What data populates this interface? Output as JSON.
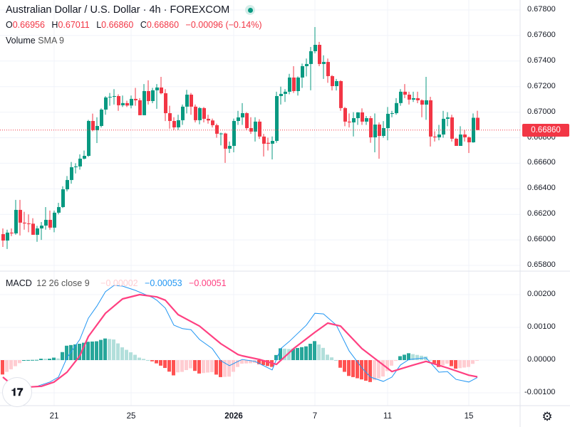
{
  "header": {
    "title": "Australian Dollar / U.S. Dollar · 4h · FOREXCOM",
    "market_status_color": "#089981",
    "ohlc": {
      "o_label": "O",
      "o": "0.66956",
      "h_label": "H",
      "h": "0.67011",
      "l_label": "L",
      "l": "0.66860",
      "c_label": "C",
      "c": "0.66860",
      "change": "−0.00096 (−0.14%)"
    },
    "volume_label": "Volume",
    "volume_sub": "SMA 9"
  },
  "macd_legend": {
    "label": "MACD",
    "params": "12 26 close 9",
    "histogram": "−0.00002",
    "macd": "−0.00053",
    "signal": "−0.00051"
  },
  "colors": {
    "up": "#089981",
    "down": "#f23645",
    "hist_up_strong": "#26a69a",
    "hist_up_weak": "#b2dfdb",
    "hist_down_strong": "#ff5252",
    "hist_down_weak": "#ffcdd2",
    "macd_line": "#2196f3",
    "signal_line": "#ff4081"
  },
  "price_axis": [
    "0.67800",
    "0.67600",
    "0.67400",
    "0.67200",
    "0.67000",
    "0.66800",
    "0.66600",
    "0.66400",
    "0.66200",
    "0.66000",
    "0.65800"
  ],
  "current_price": "0.66860",
  "macd_axis": [
    "0.00200",
    "0.00100",
    "0.00000",
    "-0.00100"
  ],
  "time_axis": [
    {
      "label": "21",
      "bar": 12,
      "bold": false
    },
    {
      "label": "25",
      "bar": 30,
      "bold": false
    },
    {
      "label": "2026",
      "bar": 54,
      "bold": true
    },
    {
      "label": "7",
      "bar": 73,
      "bold": false
    },
    {
      "label": "11",
      "bar": 90,
      "bold": false
    },
    {
      "label": "15",
      "bar": 109,
      "bold": false
    }
  ],
  "logo_text": "TV",
  "chart_data": [
    {
      "type": "candlestick",
      "ylim": [
        0.658,
        0.678
      ],
      "current_price": 0.6686,
      "candles": [
        [
          0.66045,
          0.6609,
          0.65945,
          0.65995
        ],
        [
          0.65995,
          0.6608,
          0.65929,
          0.66057
        ],
        [
          0.66057,
          0.6609,
          0.6603,
          0.66051
        ],
        [
          0.66051,
          0.66313,
          0.6604,
          0.66235
        ],
        [
          0.66235,
          0.66313,
          0.66035,
          0.66135
        ],
        [
          0.66135,
          0.6622,
          0.6608,
          0.66129
        ],
        [
          0.66129,
          0.662,
          0.6606,
          0.66127
        ],
        [
          0.66127,
          0.6617,
          0.6604,
          0.6604
        ],
        [
          0.6604,
          0.6611,
          0.65985,
          0.6609
        ],
        [
          0.6609,
          0.6614,
          0.66,
          0.66112
        ],
        [
          0.66112,
          0.66257,
          0.6608,
          0.66157
        ],
        [
          0.66157,
          0.6623,
          0.6608,
          0.66096
        ],
        [
          0.66096,
          0.6623,
          0.6606,
          0.66213
        ],
        [
          0.66213,
          0.6629,
          0.662,
          0.66257
        ],
        [
          0.66257,
          0.6642,
          0.6625,
          0.66396
        ],
        [
          0.66396,
          0.665,
          0.6638,
          0.66469
        ],
        [
          0.66469,
          0.6661,
          0.6644,
          0.66569
        ],
        [
          0.66569,
          0.666,
          0.6652,
          0.66575
        ],
        [
          0.66575,
          0.6667,
          0.6655,
          0.66636
        ],
        [
          0.66636,
          0.667,
          0.6663,
          0.66658
        ],
        [
          0.66658,
          0.6694,
          0.6665,
          0.66931
        ],
        [
          0.66931,
          0.66989,
          0.6685,
          0.66859
        ],
        [
          0.66859,
          0.6696,
          0.66758,
          0.66892
        ],
        [
          0.66892,
          0.6703,
          0.6688,
          0.6702
        ],
        [
          0.6702,
          0.67125,
          0.6698,
          0.67115
        ],
        [
          0.67115,
          0.6715,
          0.6705,
          0.6712
        ],
        [
          0.6712,
          0.6718,
          0.6706,
          0.67126
        ],
        [
          0.67126,
          0.6714,
          0.6701,
          0.67054
        ],
        [
          0.67054,
          0.6713,
          0.6704,
          0.67071
        ],
        [
          0.67071,
          0.6709,
          0.6704,
          0.67052
        ],
        [
          0.67052,
          0.6713,
          0.6703,
          0.67104
        ],
        [
          0.67104,
          0.6719,
          0.6705,
          0.67093
        ],
        [
          0.67093,
          0.6711,
          0.66976,
          0.66976
        ],
        [
          0.66976,
          0.6722,
          0.66976,
          0.67165
        ],
        [
          0.67165,
          0.67249,
          0.6706,
          0.67087
        ],
        [
          0.67087,
          0.6719,
          0.6707,
          0.67171
        ],
        [
          0.67171,
          0.6722,
          0.67026,
          0.67193
        ],
        [
          0.67193,
          0.67276,
          0.6714,
          0.67148
        ],
        [
          0.67148,
          0.6718,
          0.6693,
          0.66992
        ],
        [
          0.66992,
          0.6705,
          0.6687,
          0.66931
        ],
        [
          0.66931,
          0.6696,
          0.6686,
          0.66881
        ],
        [
          0.66881,
          0.6698,
          0.6686,
          0.66937
        ],
        [
          0.66937,
          0.6706,
          0.669,
          0.67043
        ],
        [
          0.67043,
          0.67175,
          0.6699,
          0.67137
        ],
        [
          0.67137,
          0.6715,
          0.6698,
          0.67043
        ],
        [
          0.67043,
          0.6706,
          0.6692,
          0.66937
        ],
        [
          0.66937,
          0.6704,
          0.66905,
          0.67032
        ],
        [
          0.67032,
          0.6704,
          0.6692,
          0.66948
        ],
        [
          0.66948,
          0.6698,
          0.6691,
          0.66935
        ],
        [
          0.66935,
          0.6695,
          0.6688,
          0.66898
        ],
        [
          0.66898,
          0.6691,
          0.668,
          0.66831
        ],
        [
          0.66831,
          0.6684,
          0.6674,
          0.66833
        ],
        [
          0.66833,
          0.6684,
          0.66603,
          0.66714
        ],
        [
          0.66714,
          0.6677,
          0.6668,
          0.66736
        ],
        [
          0.66736,
          0.6695,
          0.66686,
          0.66931
        ],
        [
          0.66931,
          0.6701,
          0.669,
          0.66959
        ],
        [
          0.66959,
          0.67071,
          0.669,
          0.66992
        ],
        [
          0.66992,
          0.67,
          0.6686,
          0.66875
        ],
        [
          0.66875,
          0.6696,
          0.6683,
          0.66848
        ],
        [
          0.66848,
          0.6696,
          0.6677,
          0.66926
        ],
        [
          0.66926,
          0.66945,
          0.6679,
          0.66809
        ],
        [
          0.66809,
          0.6683,
          0.66653,
          0.66753
        ],
        [
          0.6676,
          0.668,
          0.667,
          0.66753
        ],
        [
          0.66753,
          0.6681,
          0.6663,
          0.66775
        ],
        [
          0.66775,
          0.6716,
          0.6676,
          0.67126
        ],
        [
          0.67126,
          0.672,
          0.6706,
          0.67143
        ],
        [
          0.67143,
          0.6718,
          0.6708,
          0.6716
        ],
        [
          0.6716,
          0.673,
          0.6714,
          0.67271
        ],
        [
          0.67271,
          0.6736,
          0.6715,
          0.67165
        ],
        [
          0.67165,
          0.6728,
          0.6713,
          0.67271
        ],
        [
          0.67271,
          0.6738,
          0.6719,
          0.6736
        ],
        [
          0.6736,
          0.6742,
          0.6728,
          0.67377
        ],
        [
          0.67377,
          0.6751,
          0.67171,
          0.67477
        ],
        [
          0.67477,
          0.67666,
          0.6746,
          0.67527
        ],
        [
          0.67527,
          0.6755,
          0.6736,
          0.67377
        ],
        [
          0.67377,
          0.67445,
          0.6726,
          0.67393
        ],
        [
          0.67393,
          0.6742,
          0.6723,
          0.67282
        ],
        [
          0.67282,
          0.6729,
          0.6717,
          0.67204
        ],
        [
          0.67204,
          0.6726,
          0.6717,
          0.67243
        ],
        [
          0.67243,
          0.6725,
          0.6701,
          0.67032
        ],
        [
          0.67032,
          0.6704,
          0.6689,
          0.66926
        ],
        [
          0.66926,
          0.6699,
          0.6688,
          0.6692
        ],
        [
          0.6692,
          0.67,
          0.6681,
          0.66953
        ],
        [
          0.66953,
          0.67,
          0.669,
          0.66998
        ],
        [
          0.66998,
          0.6703,
          0.669,
          0.66926
        ],
        [
          0.66926,
          0.6697,
          0.669,
          0.66953
        ],
        [
          0.66953,
          0.6697,
          0.6676,
          0.66803
        ],
        [
          0.66803,
          0.6699,
          0.66686,
          0.66903
        ],
        [
          0.66903,
          0.6692,
          0.66636,
          0.66814
        ],
        [
          0.66814,
          0.6693,
          0.668,
          0.66875
        ],
        [
          0.66875,
          0.6704,
          0.6678,
          0.66987
        ],
        [
          0.66987,
          0.6701,
          0.6696,
          0.66992
        ],
        [
          0.66992,
          0.6711,
          0.6698,
          0.67071
        ],
        [
          0.67071,
          0.6718,
          0.6705,
          0.6716
        ],
        [
          0.6716,
          0.6722,
          0.6711,
          0.67137
        ],
        [
          0.67137,
          0.6716,
          0.6706,
          0.67098
        ],
        [
          0.67098,
          0.6716,
          0.6708,
          0.67109
        ],
        [
          0.67109,
          0.6716,
          0.6707,
          0.67093
        ],
        [
          0.67093,
          0.671,
          0.6696,
          0.67059
        ],
        [
          0.67059,
          0.67276,
          0.6694,
          0.67093
        ],
        [
          0.67093,
          0.6712,
          0.66731,
          0.66809
        ],
        [
          0.66809,
          0.6685,
          0.6677,
          0.66803
        ],
        [
          0.66803,
          0.669,
          0.6678,
          0.66825
        ],
        [
          0.66825,
          0.6701,
          0.668,
          0.66948
        ],
        [
          0.66948,
          0.67,
          0.6689,
          0.66959
        ],
        [
          0.66959,
          0.6698,
          0.6677,
          0.66792
        ],
        [
          0.66792,
          0.668,
          0.66736,
          0.66736
        ],
        [
          0.66736,
          0.6689,
          0.66736,
          0.66825
        ],
        [
          0.66825,
          0.6686,
          0.6677,
          0.66803
        ],
        [
          0.66803,
          0.6681,
          0.6668,
          0.66764
        ],
        [
          0.66764,
          0.6699,
          0.6676,
          0.66956
        ],
        [
          0.66956,
          0.67011,
          0.6686,
          0.6686
        ]
      ]
    },
    {
      "type": "line",
      "ylim": [
        -0.0014,
        0.0025
      ],
      "macd": [
        [
          0,
          -0.00096
        ],
        [
          2,
          -0.00102
        ],
        [
          5,
          -0.00083
        ],
        [
          8,
          -0.0008
        ],
        [
          11,
          -0.00067
        ],
        [
          13,
          -0.00052
        ],
        [
          15,
          7e-05
        ],
        [
          18,
          0.00063
        ],
        [
          20,
          0.00128
        ],
        [
          22,
          0.00165
        ],
        [
          24,
          0.00209
        ],
        [
          26,
          0.00228
        ],
        [
          28,
          0.00226
        ],
        [
          31,
          0.00213
        ],
        [
          33,
          0.00202
        ],
        [
          35,
          0.00191
        ],
        [
          36,
          0.00183
        ],
        [
          38,
          0.00159
        ],
        [
          40,
          0.00107
        ],
        [
          42,
          0.00096
        ],
        [
          44,
          0.00093
        ],
        [
          46,
          0.00063
        ],
        [
          49,
          0.00035
        ],
        [
          51,
          -2e-05
        ],
        [
          53,
          -0.00017
        ],
        [
          55,
          -4e-05
        ],
        [
          56,
          2e-05
        ],
        [
          59,
          -4e-05
        ],
        [
          63,
          -0.0003
        ],
        [
          65,
          0.00035
        ],
        [
          67,
          0.00057
        ],
        [
          71,
          0.00107
        ],
        [
          73,
          0.00143
        ],
        [
          75,
          0.00141
        ],
        [
          78,
          0.00107
        ],
        [
          81,
          0.00028
        ],
        [
          84,
          -0.00024
        ],
        [
          86,
          -0.00052
        ],
        [
          89,
          -0.00065
        ],
        [
          91,
          -0.00052
        ],
        [
          93,
          -0.00015
        ],
        [
          95,
          2e-05
        ],
        [
          99,
          7e-05
        ],
        [
          102,
          -0.00037
        ],
        [
          104,
          -0.00035
        ],
        [
          106,
          -0.00059
        ],
        [
          109,
          -0.00067
        ],
        [
          111,
          -0.00053
        ]
      ],
      "signal": [
        [
          0,
          -0.00052
        ],
        [
          2,
          -0.00074
        ],
        [
          5,
          -0.00083
        ],
        [
          9,
          -0.0008
        ],
        [
          12,
          -0.00067
        ],
        [
          15,
          -0.00037
        ],
        [
          18,
          0.00013
        ],
        [
          20,
          0.00072
        ],
        [
          24,
          0.00143
        ],
        [
          28,
          0.00187
        ],
        [
          32,
          0.002
        ],
        [
          36,
          0.00193
        ],
        [
          38,
          0.00183
        ],
        [
          41,
          0.00139
        ],
        [
          46,
          0.00104
        ],
        [
          51,
          0.0005
        ],
        [
          55,
          0.00017
        ],
        [
          56,
          0.00013
        ],
        [
          60,
          2e-05
        ],
        [
          64,
          -0.00013
        ],
        [
          68,
          0.00035
        ],
        [
          73,
          0.00085
        ],
        [
          76,
          0.00113
        ],
        [
          79,
          0.00104
        ],
        [
          84,
          0.00035
        ],
        [
          89,
          -0.00015
        ],
        [
          91,
          -0.00035
        ],
        [
          96,
          -0.00015
        ],
        [
          99,
          -4e-05
        ],
        [
          104,
          -0.00024
        ],
        [
          109,
          -0.00046
        ],
        [
          111,
          -0.00051
        ]
      ]
    }
  ]
}
